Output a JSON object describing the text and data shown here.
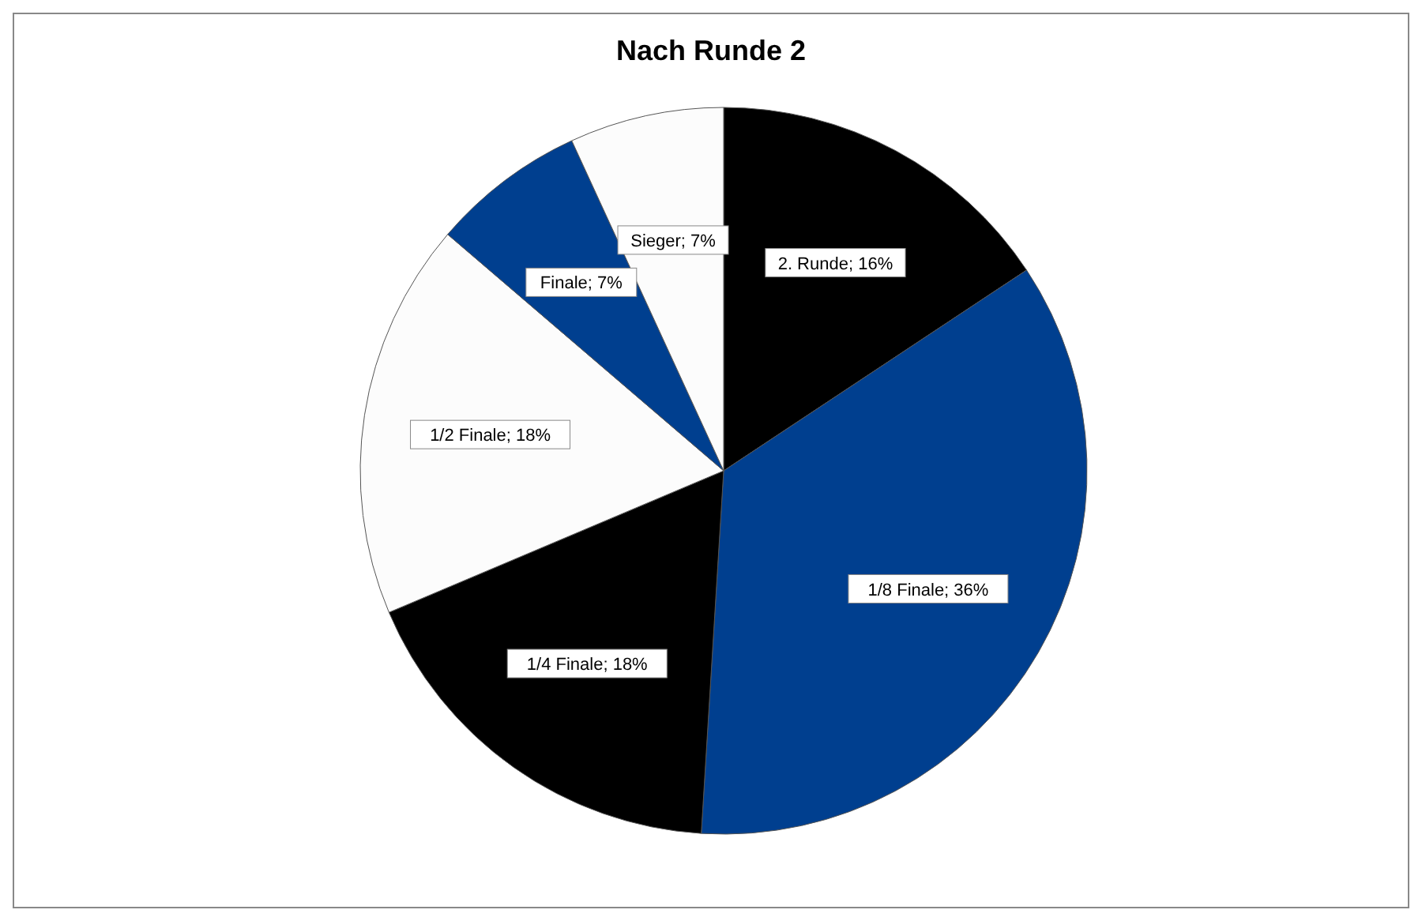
{
  "chart_data": {
    "type": "pie",
    "title": "Nach Runde 2",
    "categories": [
      "2. Runde",
      "1/8 Finale",
      "1/4 Finale",
      "1/2 Finale",
      "Finale",
      "Sieger"
    ],
    "values": [
      16,
      36,
      18,
      18,
      7,
      7
    ],
    "value_labels": [
      "16%",
      "36%",
      "18%",
      "18%",
      "7%",
      "7%"
    ],
    "colors": [
      "#000000",
      "#003f8f",
      "#000000",
      "#fcfcfc",
      "#003f8f",
      "#fcfcfc"
    ]
  }
}
